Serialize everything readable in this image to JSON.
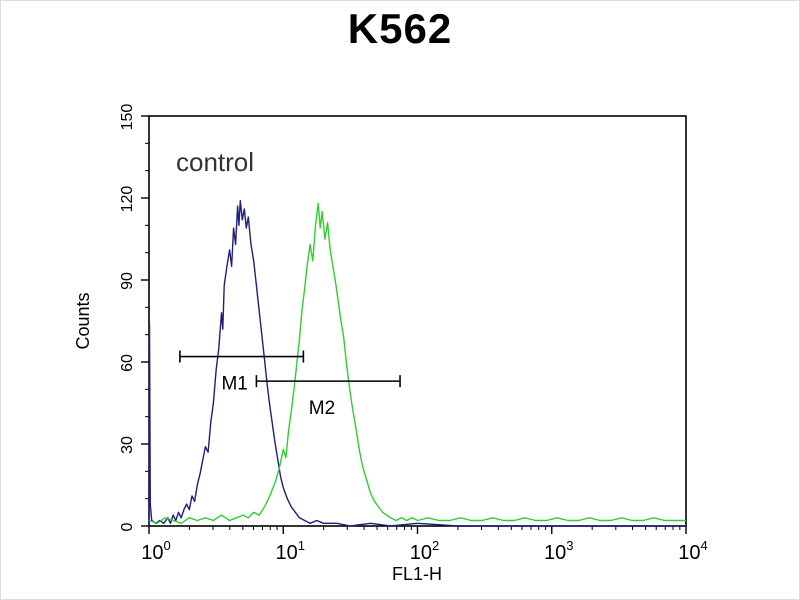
{
  "title": "K562",
  "chart_data": {
    "type": "line",
    "subtype": "flow-cytometry-histogram",
    "title": "K562",
    "xlabel": "FL1-H",
    "ylabel": "Counts",
    "x_scale": "log10",
    "x_range_log": [
      0,
      4
    ],
    "ylim": [
      0,
      150
    ],
    "y_major_ticks": [
      0,
      30,
      60,
      90,
      120,
      150
    ],
    "y_minor_step": 10,
    "x_decade_exponents": [
      0,
      1,
      2,
      3,
      4
    ],
    "tick_base": "10",
    "grid": "off",
    "legend": "none",
    "annotation": {
      "text": "control",
      "x_log": 0.2,
      "y": 130
    },
    "series": [
      {
        "id": "series-1",
        "color": "#1f1f77",
        "points": [
          [
            0.0,
            0
          ],
          [
            0.004,
            74
          ],
          [
            0.01,
            8
          ],
          [
            0.02,
            2
          ],
          [
            0.05,
            1
          ],
          [
            0.08,
            2
          ],
          [
            0.11,
            1
          ],
          [
            0.14,
            3
          ],
          [
            0.16,
            1
          ],
          [
            0.18,
            4
          ],
          [
            0.2,
            2
          ],
          [
            0.22,
            5
          ],
          [
            0.24,
            3
          ],
          [
            0.26,
            6
          ],
          [
            0.28,
            8
          ],
          [
            0.3,
            6
          ],
          [
            0.32,
            11
          ],
          [
            0.34,
            9
          ],
          [
            0.36,
            15
          ],
          [
            0.38,
            19
          ],
          [
            0.4,
            24
          ],
          [
            0.42,
            29
          ],
          [
            0.44,
            27
          ],
          [
            0.46,
            38
          ],
          [
            0.48,
            45
          ],
          [
            0.5,
            57
          ],
          [
            0.52,
            65
          ],
          [
            0.54,
            78
          ],
          [
            0.55,
            72
          ],
          [
            0.56,
            88
          ],
          [
            0.58,
            95
          ],
          [
            0.6,
            101
          ],
          [
            0.615,
            95
          ],
          [
            0.63,
            109
          ],
          [
            0.645,
            103
          ],
          [
            0.66,
            117
          ],
          [
            0.67,
            110
          ],
          [
            0.68,
            119
          ],
          [
            0.695,
            112
          ],
          [
            0.71,
            116
          ],
          [
            0.725,
            109
          ],
          [
            0.74,
            113
          ],
          [
            0.76,
            103
          ],
          [
            0.78,
            97
          ],
          [
            0.8,
            88
          ],
          [
            0.82,
            79
          ],
          [
            0.84,
            70
          ],
          [
            0.86,
            61
          ],
          [
            0.88,
            52
          ],
          [
            0.9,
            44
          ],
          [
            0.92,
            37
          ],
          [
            0.94,
            30
          ],
          [
            0.96,
            24
          ],
          [
            0.98,
            18
          ],
          [
            1.0,
            14
          ],
          [
            1.03,
            10
          ],
          [
            1.06,
            7
          ],
          [
            1.09,
            5
          ],
          [
            1.12,
            3
          ],
          [
            1.16,
            2
          ],
          [
            1.2,
            1
          ],
          [
            1.25,
            2
          ],
          [
            1.3,
            1
          ],
          [
            1.4,
            1
          ],
          [
            1.5,
            0
          ],
          [
            1.65,
            1
          ],
          [
            1.8,
            0
          ],
          [
            2.0,
            1
          ],
          [
            2.3,
            0
          ],
          [
            2.7,
            0
          ],
          [
            3.2,
            0
          ],
          [
            3.7,
            0
          ],
          [
            4.0,
            0
          ]
        ]
      },
      {
        "id": "series-2",
        "color": "#33cc33",
        "points": [
          [
            0.0,
            2
          ],
          [
            0.06,
            1
          ],
          [
            0.12,
            3
          ],
          [
            0.18,
            2
          ],
          [
            0.24,
            1
          ],
          [
            0.3,
            3
          ],
          [
            0.36,
            2
          ],
          [
            0.42,
            3
          ],
          [
            0.48,
            2
          ],
          [
            0.54,
            4
          ],
          [
            0.6,
            2
          ],
          [
            0.65,
            3
          ],
          [
            0.7,
            4
          ],
          [
            0.74,
            3
          ],
          [
            0.78,
            5
          ],
          [
            0.82,
            4
          ],
          [
            0.86,
            7
          ],
          [
            0.9,
            11
          ],
          [
            0.94,
            16
          ],
          [
            0.97,
            21
          ],
          [
            1.0,
            28
          ],
          [
            1.02,
            25
          ],
          [
            1.04,
            35
          ],
          [
            1.06,
            42
          ],
          [
            1.08,
            50
          ],
          [
            1.1,
            59
          ],
          [
            1.12,
            68
          ],
          [
            1.14,
            79
          ],
          [
            1.16,
            87
          ],
          [
            1.18,
            96
          ],
          [
            1.2,
            103
          ],
          [
            1.22,
            97
          ],
          [
            1.24,
            110
          ],
          [
            1.26,
            118
          ],
          [
            1.275,
            109
          ],
          [
            1.29,
            115
          ],
          [
            1.31,
            105
          ],
          [
            1.33,
            111
          ],
          [
            1.35,
            101
          ],
          [
            1.37,
            95
          ],
          [
            1.39,
            89
          ],
          [
            1.41,
            82
          ],
          [
            1.43,
            75
          ],
          [
            1.45,
            69
          ],
          [
            1.47,
            60
          ],
          [
            1.49,
            52
          ],
          [
            1.51,
            45
          ],
          [
            1.53,
            39
          ],
          [
            1.55,
            33
          ],
          [
            1.57,
            27
          ],
          [
            1.59,
            22
          ],
          [
            1.62,
            17
          ],
          [
            1.65,
            12
          ],
          [
            1.68,
            9
          ],
          [
            1.71,
            7
          ],
          [
            1.74,
            5
          ],
          [
            1.77,
            4
          ],
          [
            1.8,
            3
          ],
          [
            1.84,
            2
          ],
          [
            1.88,
            3
          ],
          [
            1.92,
            2
          ],
          [
            1.96,
            3
          ],
          [
            2.0,
            2
          ],
          [
            2.08,
            3
          ],
          [
            2.16,
            2
          ],
          [
            2.24,
            2
          ],
          [
            2.32,
            3
          ],
          [
            2.4,
            2
          ],
          [
            2.48,
            2
          ],
          [
            2.56,
            3
          ],
          [
            2.64,
            2
          ],
          [
            2.72,
            2
          ],
          [
            2.8,
            3
          ],
          [
            2.88,
            2
          ],
          [
            2.96,
            2
          ],
          [
            3.04,
            3
          ],
          [
            3.12,
            2
          ],
          [
            3.2,
            2
          ],
          [
            3.28,
            3
          ],
          [
            3.36,
            2
          ],
          [
            3.44,
            2
          ],
          [
            3.52,
            3
          ],
          [
            3.6,
            2
          ],
          [
            3.68,
            2
          ],
          [
            3.76,
            3
          ],
          [
            3.84,
            2
          ],
          [
            3.92,
            2
          ],
          [
            4.0,
            2
          ]
        ]
      }
    ],
    "markers": [
      {
        "label": "M1",
        "y": 62,
        "x1_log": 0.23,
        "x2_log": 1.15,
        "label_x_log": 0.54,
        "label_y": 50
      },
      {
        "label": "M2",
        "y": 53,
        "x1_log": 0.8,
        "x2_log": 1.87,
        "label_x_log": 1.19,
        "label_y": 41
      }
    ],
    "colors": {
      "axis": "#000000",
      "text": "#000000",
      "background": "#ffffff"
    }
  }
}
